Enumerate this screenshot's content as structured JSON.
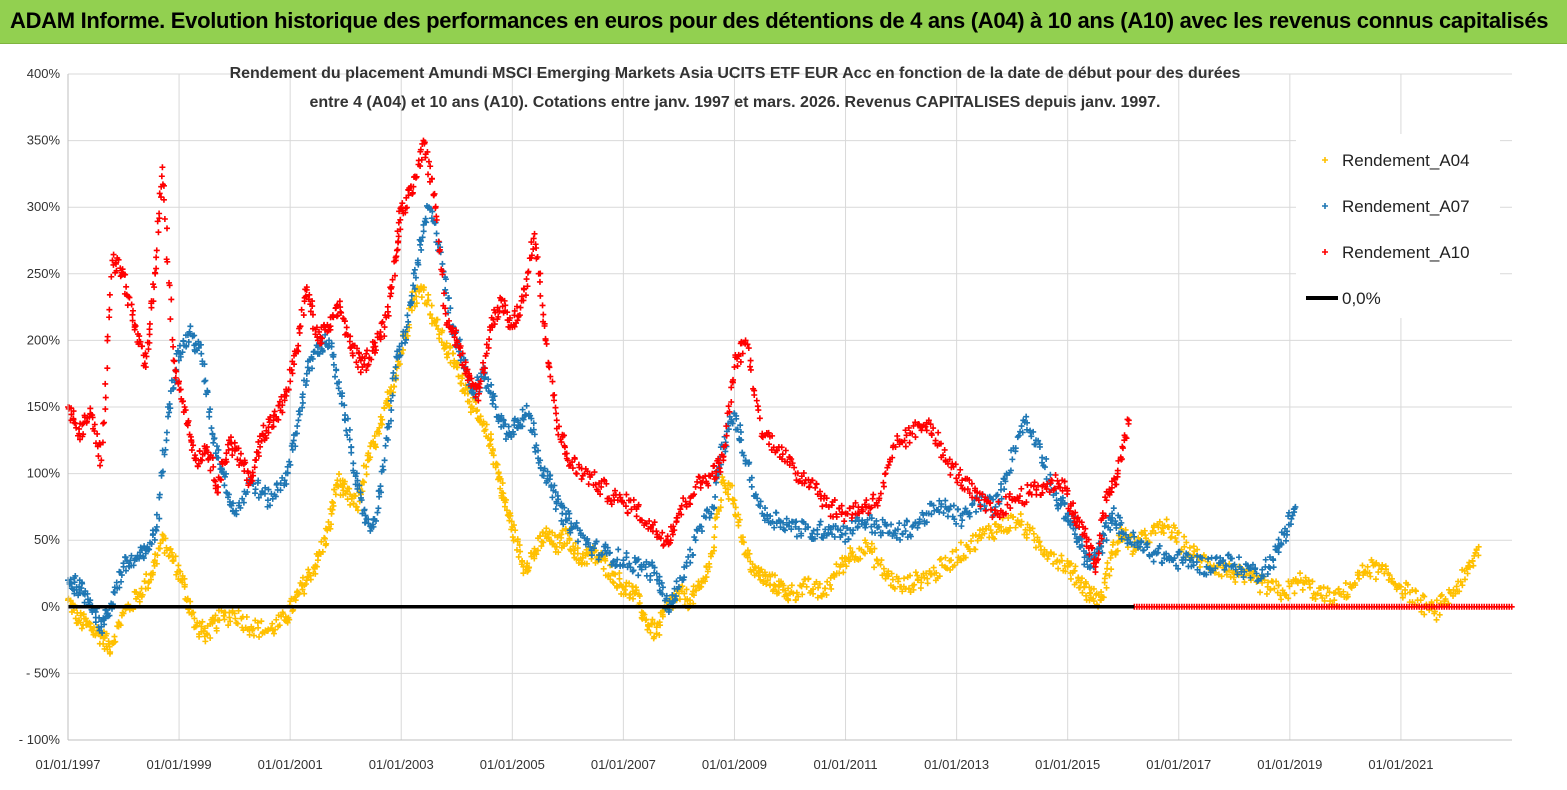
{
  "banner": {
    "title": "ADAM Informe. Evolution historique des performances en euros pour des détentions de 4 ans (A04) à 10 ans (A10) avec les revenus connus capitalisés"
  },
  "colors": {
    "banner_bg": "#92d050",
    "A04": "#ffc000",
    "A07": "#1f77b4",
    "A10": "#ff0000",
    "zero": "#000000",
    "grid": "#d9d9d9"
  },
  "chart_data": {
    "type": "scatter",
    "title_lines": [
      "Rendement du placement Amundi MSCI Emerging Markets Asia UCITS ETF EUR Acc en fonction de la date de début pour des durées",
      "entre 4 (A04) et 10 ans (A10). Cotations entre janv. 1997 et mars. 2026. Revenus CAPITALISES depuis janv. 1997."
    ],
    "xlabel": "",
    "ylabel": "",
    "x_range": [
      1997.0,
      2023.0
    ],
    "ylim": [
      -100,
      400
    ],
    "y_ticks": [
      -100,
      -50,
      0,
      50,
      100,
      150,
      200,
      250,
      300,
      350,
      400
    ],
    "y_tick_labels": [
      "- 100%",
      "- 50%",
      "0%",
      "50%",
      "100%",
      "150%",
      "200%",
      "250%",
      "300%",
      "350%",
      "400%"
    ],
    "x_ticks": [
      1997,
      1999,
      2001,
      2003,
      2005,
      2007,
      2009,
      2011,
      2013,
      2015,
      2017,
      2019,
      2021
    ],
    "x_tick_labels": [
      "01/01/1997",
      "01/01/1999",
      "01/01/2001",
      "01/01/2003",
      "01/01/2005",
      "01/01/2007",
      "01/01/2009",
      "01/01/2011",
      "01/01/2013",
      "01/01/2015",
      "01/01/2017",
      "01/01/2019",
      "01/01/2021"
    ],
    "legend": [
      "Rendement_A04",
      "Rendement_A07",
      "Rendement_A10",
      "0,0%"
    ],
    "legend_position": "top-right",
    "grid": true,
    "series": [
      {
        "name": "Rendement_A04",
        "x": [
          1997.0,
          1997.2,
          1997.4,
          1997.6,
          1997.75,
          1998.0,
          1998.3,
          1998.5,
          1998.7,
          1998.9,
          1999.1,
          1999.3,
          1999.5,
          1999.7,
          2000.0,
          2000.3,
          2000.6,
          2000.9,
          2001.1,
          2001.3,
          2001.5,
          2001.7,
          2001.85,
          2002.0,
          2002.2,
          2002.4,
          2002.6,
          2002.8,
          2003.0,
          2003.2,
          2003.4,
          2003.6,
          2003.8,
          2004.0,
          2004.2,
          2004.4,
          2004.6,
          2004.75,
          2004.85,
          2005.0,
          2005.2,
          2005.4,
          2005.6,
          2005.8,
          2006.0,
          2006.2,
          2006.4,
          2006.6,
          2006.8,
          2007.0,
          2007.2,
          2007.4,
          2007.6,
          2007.8,
          2008.0,
          2008.2,
          2008.4,
          2008.6,
          2008.8,
          2009.0,
          2009.2,
          2009.4,
          2009.6,
          2009.8,
          2010.0,
          2010.3,
          2010.6,
          2010.9,
          2011.1,
          2011.4,
          2011.7,
          2012.0,
          2012.3,
          2012.6,
          2012.9,
          2013.2,
          2013.5,
          2013.8,
          2014.1,
          2014.4,
          2014.7,
          2015.0,
          2015.2,
          2015.4,
          2015.6,
          2015.8,
          2016.0,
          2016.2,
          2016.5,
          2016.8,
          2017.1,
          2017.4,
          2017.7,
          2018.0,
          2018.3,
          2018.6,
          2018.9,
          2019.2,
          2019.5,
          2019.8,
          2020.1,
          2020.4,
          2020.7,
          2021.0,
          2021.3,
          2021.6,
          2021.9,
          2022.2,
          2022.4
        ],
        "values": [
          5,
          -10,
          -15,
          -22,
          -30,
          -5,
          10,
          25,
          50,
          35,
          15,
          -15,
          -20,
          -10,
          -5,
          -15,
          -18,
          -10,
          5,
          20,
          35,
          60,
          95,
          85,
          75,
          110,
          130,
          160,
          190,
          230,
          240,
          215,
          195,
          180,
          160,
          140,
          125,
          100,
          80,
          60,
          30,
          40,
          55,
          45,
          55,
          35,
          40,
          35,
          25,
          15,
          10,
          -10,
          -20,
          0,
          10,
          5,
          15,
          40,
          95,
          80,
          40,
          25,
          20,
          15,
          10,
          15,
          10,
          30,
          40,
          45,
          25,
          15,
          20,
          25,
          35,
          45,
          55,
          60,
          65,
          50,
          40,
          30,
          20,
          10,
          5,
          40,
          55,
          45,
          55,
          60,
          45,
          35,
          30,
          25,
          20,
          15,
          10,
          20,
          10,
          5,
          15,
          30,
          25,
          15,
          5,
          -5,
          10,
          25,
          45
        ]
      },
      {
        "name": "Rendement_A07",
        "x": [
          1997.0,
          1997.2,
          1997.4,
          1997.6,
          1997.75,
          1998.0,
          1998.2,
          1998.4,
          1998.6,
          1998.8,
          1999.0,
          1999.2,
          1999.4,
          1999.6,
          1999.8,
          2000.0,
          2000.3,
          2000.6,
          2000.9,
          2001.1,
          2001.3,
          2001.5,
          2001.7,
          2001.9,
          2002.1,
          2002.3,
          2002.5,
          2002.7,
          2002.9,
          2003.1,
          2003.3,
          2003.5,
          2003.7,
          2003.9,
          2004.1,
          2004.3,
          2004.5,
          2004.7,
          2004.9,
          2005.1,
          2005.3,
          2005.5,
          2005.7,
          2005.9,
          2006.1,
          2006.4,
          2006.7,
          2007.0,
          2007.3,
          2007.6,
          2007.8,
          2008.0,
          2008.3,
          2008.6,
          2008.8,
          2009.0,
          2009.2,
          2009.5,
          2009.8,
          2010.1,
          2010.4,
          2010.7,
          2011.0,
          2011.3,
          2011.6,
          2011.9,
          2012.2,
          2012.5,
          2012.8,
          2013.1,
          2013.4,
          2013.7,
          2013.9,
          2014.2,
          2014.5,
          2014.8,
          2015.0,
          2015.2,
          2015.4,
          2015.6,
          2015.8,
          2016.0,
          2016.3,
          2016.6,
          2016.9,
          2017.2,
          2017.5,
          2017.8,
          2018.1,
          2018.4,
          2018.7,
          2018.9,
          2019.1
        ],
        "values": [
          20,
          15,
          5,
          -15,
          0,
          30,
          35,
          40,
          60,
          150,
          190,
          205,
          190,
          130,
          100,
          70,
          95,
          80,
          95,
          130,
          175,
          195,
          200,
          160,
          120,
          70,
          60,
          110,
          180,
          210,
          260,
          300,
          270,
          210,
          190,
          160,
          175,
          150,
          130,
          140,
          145,
          110,
          90,
          70,
          60,
          45,
          40,
          35,
          30,
          25,
          0,
          15,
          50,
          75,
          120,
          145,
          110,
          70,
          65,
          60,
          55,
          60,
          55,
          65,
          60,
          55,
          60,
          70,
          75,
          65,
          80,
          75,
          100,
          140,
          120,
          80,
          70,
          50,
          30,
          45,
          70,
          55,
          45,
          40,
          35,
          35,
          30,
          35,
          30,
          25,
          35,
          55,
          75
        ]
      },
      {
        "name": "Rendement_A10",
        "x": [
          1997.0,
          1997.2,
          1997.4,
          1997.6,
          1997.8,
          1998.0,
          1998.2,
          1998.4,
          1998.55,
          1998.7,
          1998.9,
          1999.1,
          1999.3,
          1999.5,
          1999.7,
          1999.9,
          2000.1,
          2000.3,
          2000.5,
          2000.7,
          2000.9,
          2001.1,
          2001.3,
          2001.5,
          2001.7,
          2001.9,
          2002.1,
          2002.3,
          2002.5,
          2002.7,
          2002.9,
          2003.0,
          2003.2,
          2003.4,
          2003.6,
          2003.8,
          2004.0,
          2004.2,
          2004.4,
          2004.6,
          2004.8,
          2005.0,
          2005.2,
          2005.4,
          2005.6,
          2005.8,
          2006.0,
          2006.3,
          2006.6,
          2006.9,
          2007.2,
          2007.5,
          2007.8,
          2008.0,
          2008.3,
          2008.6,
          2008.8,
          2009.0,
          2009.2,
          2009.5,
          2009.8,
          2010.1,
          2010.4,
          2010.7,
          2011.0,
          2011.3,
          2011.6,
          2011.9,
          2012.2,
          2012.5,
          2012.8,
          2013.1,
          2013.4,
          2013.7,
          2014.0,
          2014.3,
          2014.6,
          2014.9,
          2015.1,
          2015.3,
          2015.5,
          2015.7,
          2015.9,
          2016.1
        ],
        "values": [
          150,
          130,
          145,
          110,
          260,
          250,
          210,
          180,
          240,
          330,
          185,
          150,
          110,
          120,
          90,
          125,
          110,
          95,
          130,
          140,
          155,
          190,
          240,
          200,
          210,
          225,
          195,
          180,
          195,
          210,
          260,
          300,
          310,
          350,
          310,
          220,
          200,
          170,
          160,
          210,
          230,
          210,
          230,
          280,
          200,
          140,
          110,
          100,
          90,
          80,
          75,
          60,
          50,
          70,
          90,
          100,
          110,
          180,
          200,
          130,
          120,
          100,
          95,
          75,
          70,
          75,
          80,
          120,
          130,
          140,
          110,
          95,
          80,
          70,
          80,
          85,
          90,
          95,
          70,
          55,
          30,
          80,
          100,
          140
        ]
      },
      {
        "name": "0,0%",
        "x": [
          1997.0,
          2023.0
        ],
        "values": [
          0,
          0
        ]
      }
    ]
  }
}
